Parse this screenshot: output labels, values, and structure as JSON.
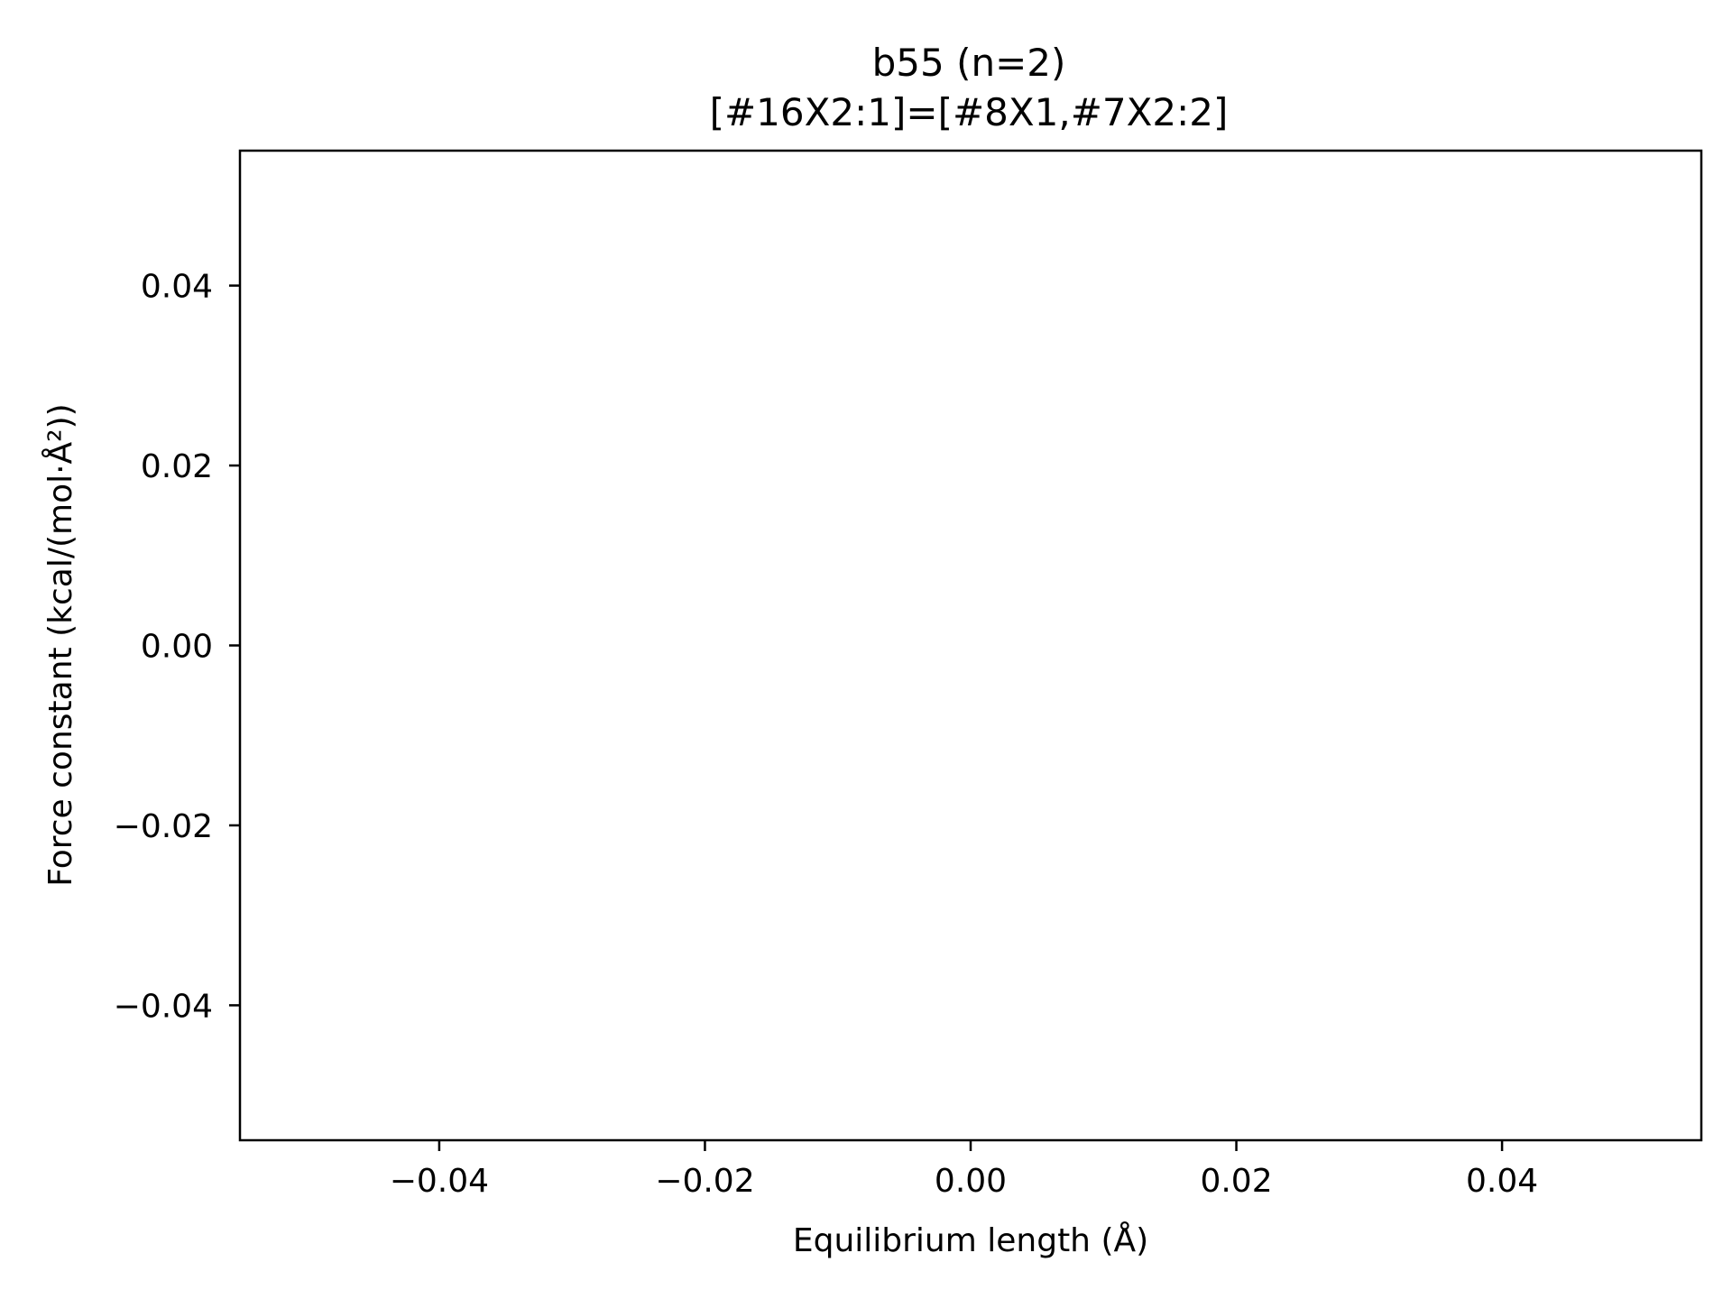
{
  "chart_data": {
    "type": "scatter",
    "title": "b55 (n=2)",
    "subtitle": "[#16X2:1]=[#8X1,#7X2:2]",
    "xlabel": "Equilibrium length (Å)",
    "ylabel": "Force constant (kcal/(mol·Å²))",
    "xlim": [
      -0.055,
      0.055
    ],
    "ylim": [
      -0.055,
      0.055
    ],
    "xticks": [
      -0.04,
      -0.02,
      0.0,
      0.02,
      0.04
    ],
    "yticks": [
      -0.04,
      -0.02,
      0.0,
      0.02,
      0.04
    ],
    "xtick_labels": [
      "−0.04",
      "−0.02",
      "0.00",
      "0.02",
      "0.04"
    ],
    "ytick_labels": [
      "−0.04",
      "−0.02",
      "0.00",
      "0.02",
      "0.04"
    ],
    "series": [],
    "grid": false,
    "legend": "none"
  }
}
